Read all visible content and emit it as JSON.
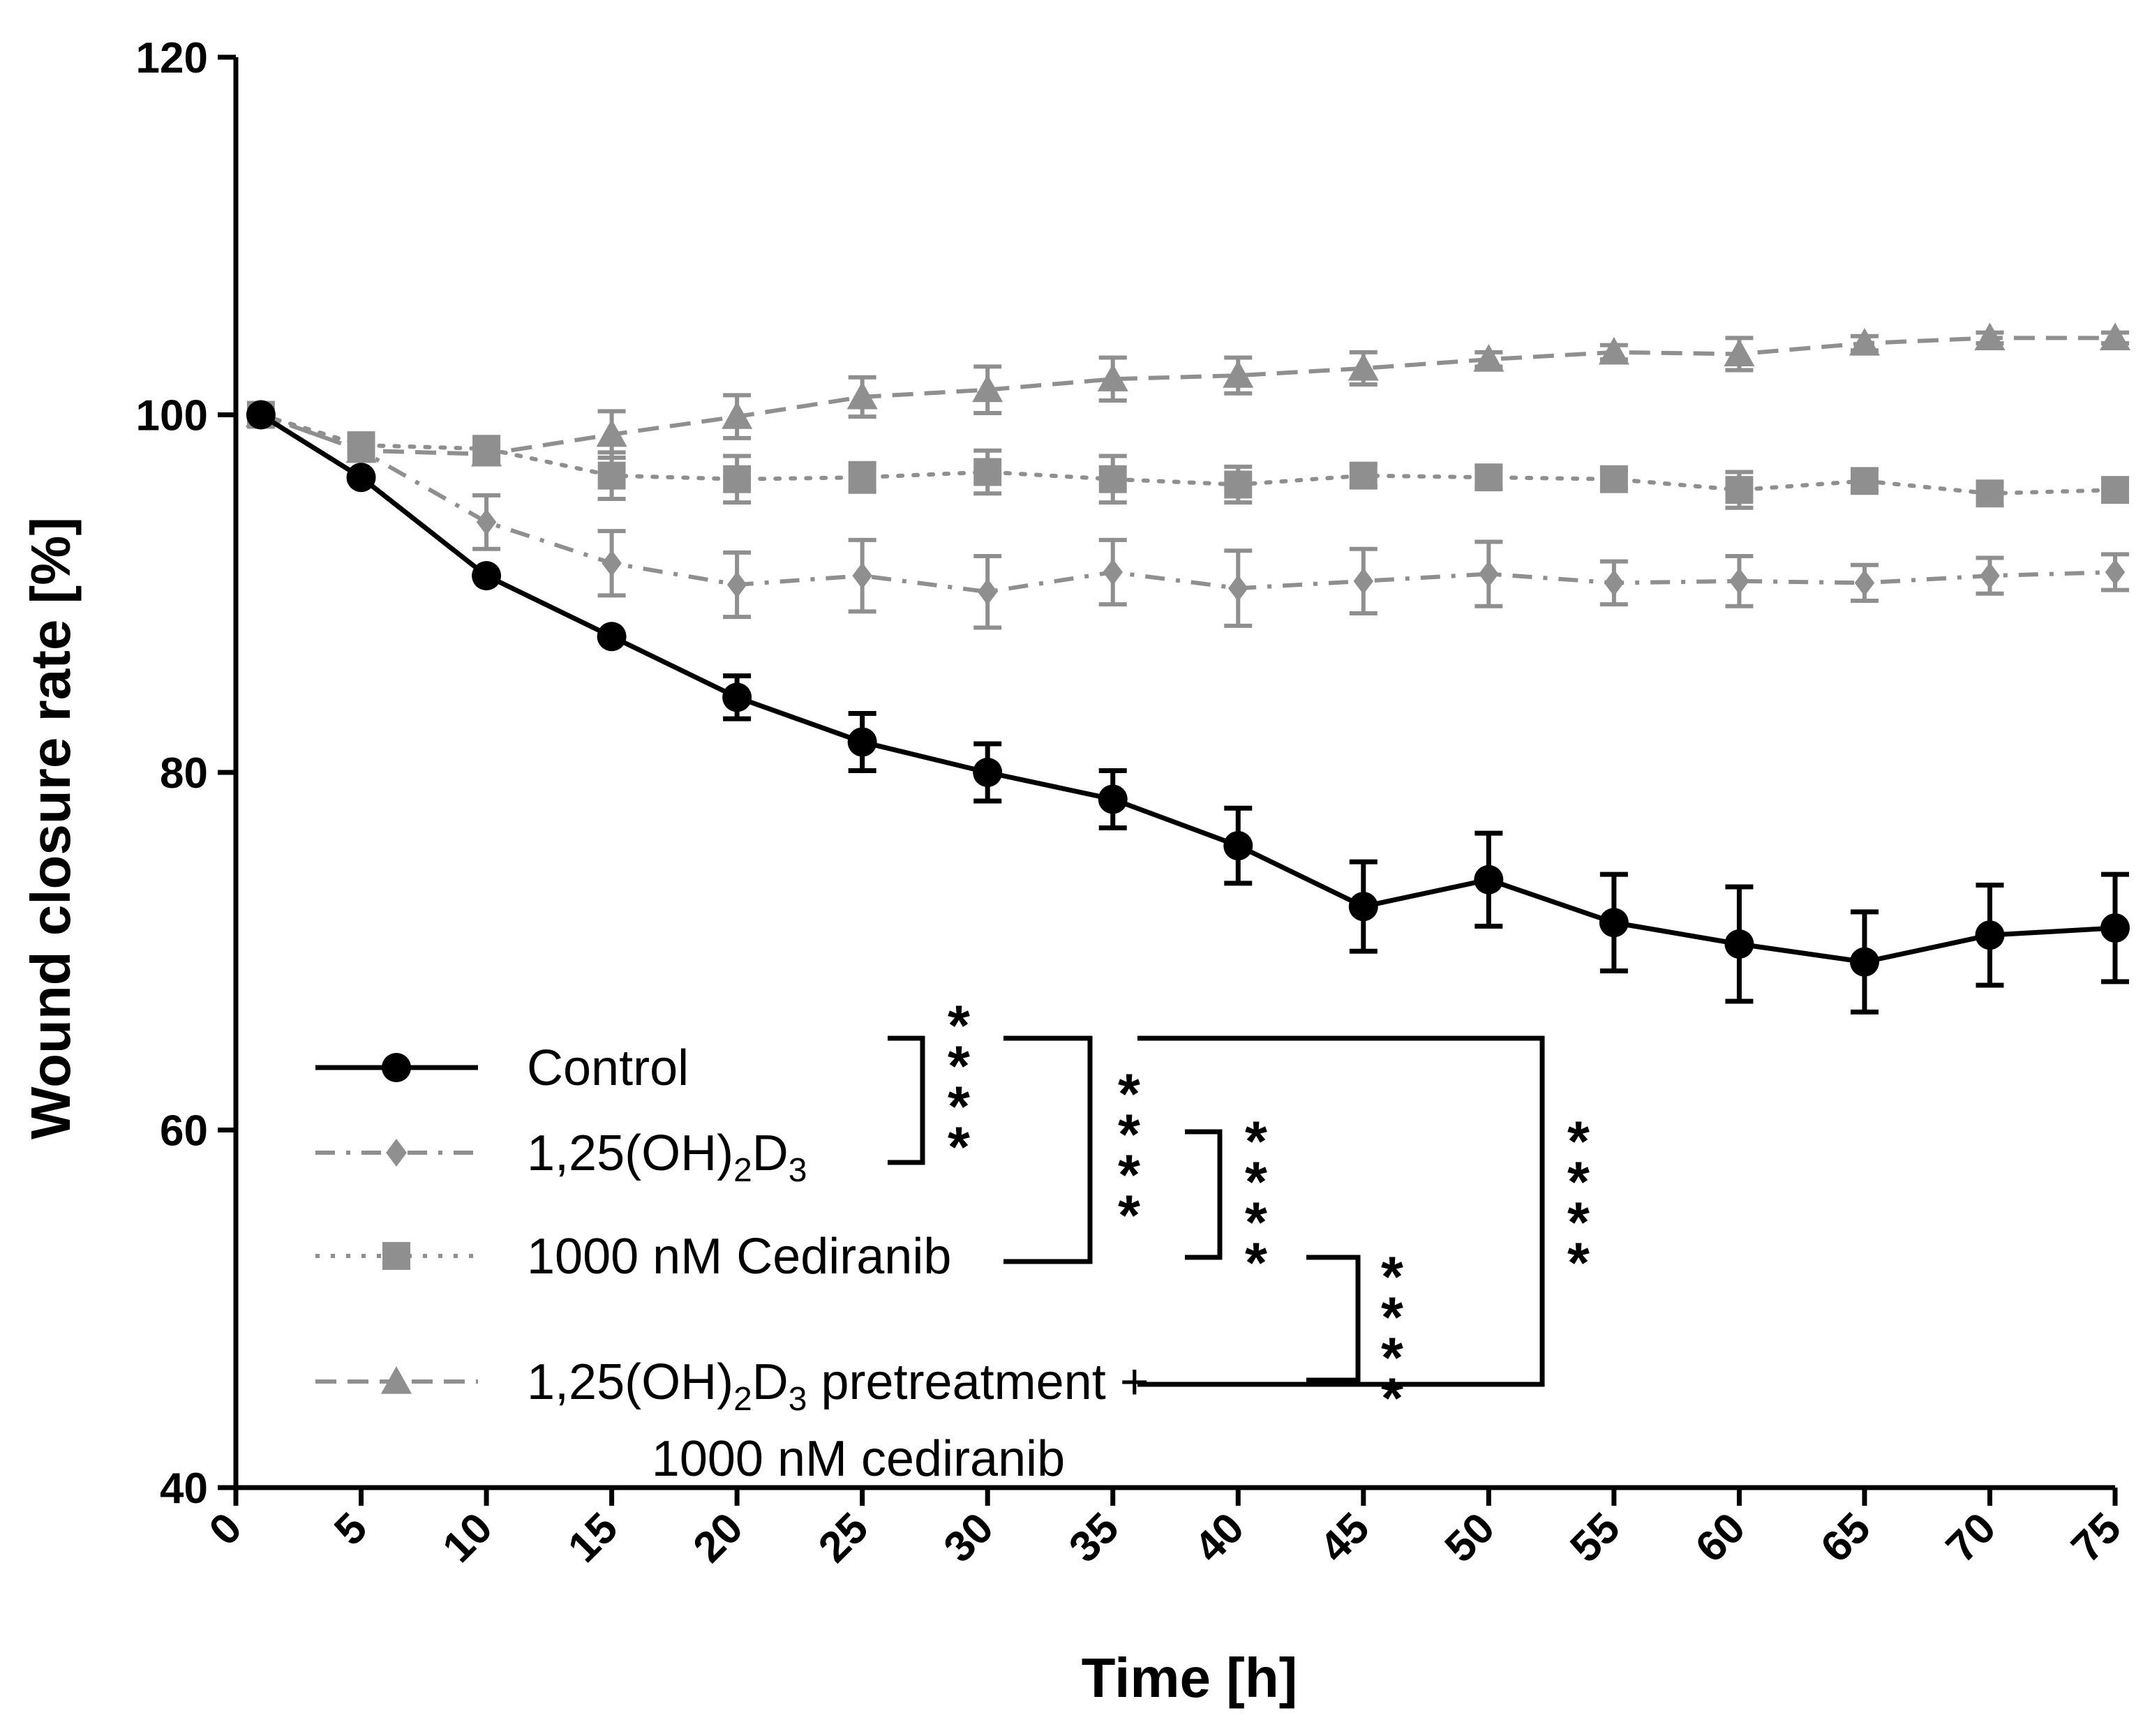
{
  "chart_data": {
    "type": "line",
    "title": "",
    "xlabel": "Time [h]",
    "ylabel": "Wound closure rate [%]",
    "xlim": [
      0,
      75
    ],
    "ylim": [
      40,
      120
    ],
    "xticks": [
      0,
      5,
      10,
      15,
      20,
      25,
      30,
      35,
      40,
      45,
      50,
      55,
      60,
      65,
      70,
      75
    ],
    "yticks": [
      40,
      60,
      80,
      100,
      120
    ],
    "grid": false,
    "legend_position": "bottom-left",
    "series": [
      {
        "name": "Control",
        "color": "#000000",
        "marker": "circle",
        "line": "solid",
        "x": [
          1,
          5,
          10,
          15,
          20,
          25,
          30,
          35,
          40,
          45,
          50,
          55,
          60,
          65,
          70,
          75
        ],
        "values": [
          100,
          96.5,
          91,
          87.6,
          84.2,
          81.7,
          80,
          78.5,
          75.9,
          72.5,
          74,
          71.6,
          70.4,
          69.4,
          70.9,
          71.3
        ],
        "errors": [
          0,
          0,
          0,
          0,
          1.2,
          1.6,
          1.6,
          1.6,
          2.1,
          2.5,
          2.6,
          2.7,
          3.2,
          2.8,
          2.8,
          3.0
        ]
      },
      {
        "name": "1,25(OH)2D3",
        "label_main": "1,25(OH)",
        "label_sub1": "2",
        "label_mid": "D",
        "label_sub2": "3",
        "color": "#8f8f8f",
        "marker": "diamond",
        "line": "dash-dot",
        "x": [
          1,
          5,
          10,
          15,
          20,
          25,
          30,
          35,
          40,
          45,
          50,
          55,
          60,
          65,
          70,
          75
        ],
        "values": [
          100,
          98,
          94,
          91.7,
          90.5,
          91,
          90.1,
          91.2,
          90.3,
          90.7,
          91.1,
          90.6,
          90.7,
          90.6,
          91,
          91.2
        ],
        "errors": [
          0,
          0,
          1.5,
          1.8,
          1.8,
          2.0,
          2.0,
          1.8,
          2.1,
          1.8,
          1.8,
          1.2,
          1.4,
          1.0,
          1.0,
          1.0
        ]
      },
      {
        "name": "1000 nM Cediranib",
        "color": "#8f8f8f",
        "marker": "square",
        "line": "dotted",
        "x": [
          1,
          5,
          10,
          15,
          20,
          25,
          30,
          35,
          40,
          45,
          50,
          55,
          60,
          65,
          70,
          75
        ],
        "values": [
          100,
          98.3,
          98.1,
          96.6,
          96.4,
          96.5,
          96.8,
          96.4,
          96.1,
          96.6,
          96.5,
          96.4,
          95.8,
          96.3,
          95.6,
          95.8
        ],
        "errors": [
          0,
          0,
          0.6,
          1.3,
          1.3,
          0.8,
          1.2,
          1.3,
          1.0,
          0.6,
          0.6,
          0.5,
          1.0,
          0.6,
          0.6,
          0.6
        ]
      },
      {
        "name": "1,25(OH)2D3 pretreatment + 1000 nM cediranib",
        "label_main": "1,25(OH)",
        "label_sub1": "2",
        "label_mid": "D",
        "label_sub2": "3",
        "label_rest": " pretreatment +",
        "label_line2": "1000 nM cediranib",
        "color": "#8f8f8f",
        "marker": "triangle",
        "line": "dashed",
        "x": [
          1,
          5,
          10,
          15,
          20,
          25,
          30,
          35,
          40,
          45,
          50,
          55,
          60,
          65,
          70,
          75
        ],
        "values": [
          100,
          98,
          97.8,
          98.9,
          99.9,
          101,
          101.4,
          102,
          102.2,
          102.6,
          103.1,
          103.5,
          103.4,
          104,
          104.3,
          104.3
        ],
        "errors": [
          0,
          0,
          0.5,
          1.3,
          1.2,
          1.1,
          1.3,
          1.2,
          1.0,
          0.9,
          0.4,
          0.4,
          0.9,
          0.4,
          0.3,
          0.3
        ]
      }
    ],
    "significance": [
      {
        "pair": [
          "Control",
          "1,25(OH)2D3"
        ],
        "label": "****"
      },
      {
        "pair": [
          "Control",
          "1000 nM Cediranib"
        ],
        "label": "****"
      },
      {
        "pair": [
          "1,25(OH)2D3",
          "1000 nM Cediranib"
        ],
        "label": "****"
      },
      {
        "pair": [
          "1000 nM Cediranib",
          "1,25(OH)2D3 pretreatment + 1000 nM cediranib"
        ],
        "label": "****"
      },
      {
        "pair": [
          "Control",
          "1,25(OH)2D3 pretreatment + 1000 nM cediranib"
        ],
        "label": "****"
      }
    ]
  }
}
